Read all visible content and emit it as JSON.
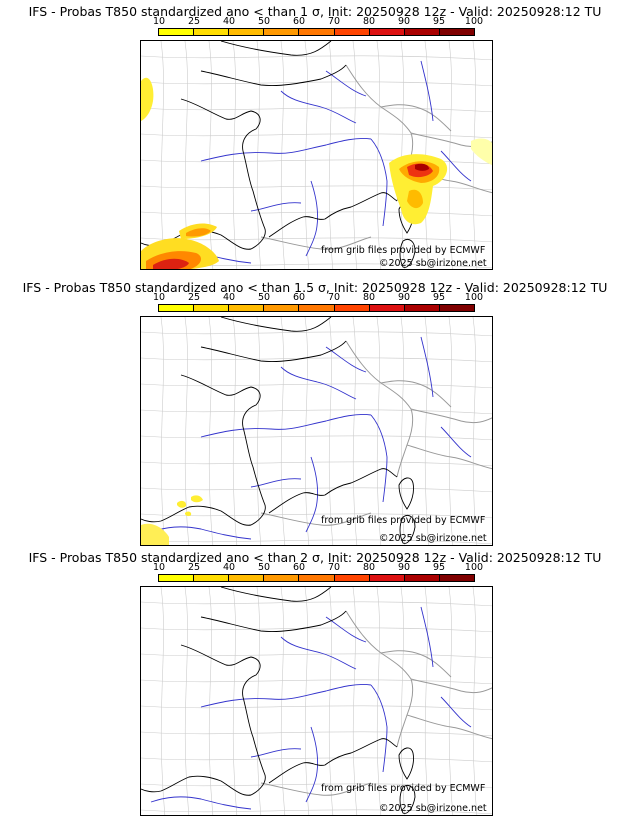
{
  "panels": [
    {
      "title": "IFS - Probas T850  standardized ano < than 1 σ, Init: 20250928 12z - Valid: 20250928:12 TU",
      "prob_level": "1σ"
    },
    {
      "title": "IFS - Probas T850  standardized ano < than 1.5 σ, Init: 20250928 12z - Valid: 20250928:12 TU",
      "prob_level": "1.5σ"
    },
    {
      "title": "IFS - Probas T850  standardized ano < than 2 σ, Init: 20250928 12z - Valid: 20250928:12 TU",
      "prob_level": "2σ"
    }
  ],
  "colorbar": {
    "ticks": [
      "10",
      "25",
      "40",
      "50",
      "60",
      "70",
      "80",
      "90",
      "95",
      "100"
    ],
    "colors": [
      "#ffff00",
      "#ffdd00",
      "#ffbb00",
      "#ff9900",
      "#ff7700",
      "#ff4400",
      "#dd1111",
      "#aa0000",
      "#800000"
    ]
  },
  "credits": {
    "source": "from grib files provided by ECMWF",
    "copyright": "©2025 sb@irizone.net"
  },
  "colors": {
    "rivers": "#3333cc",
    "borders": "#999999",
    "coast": "#000000"
  }
}
